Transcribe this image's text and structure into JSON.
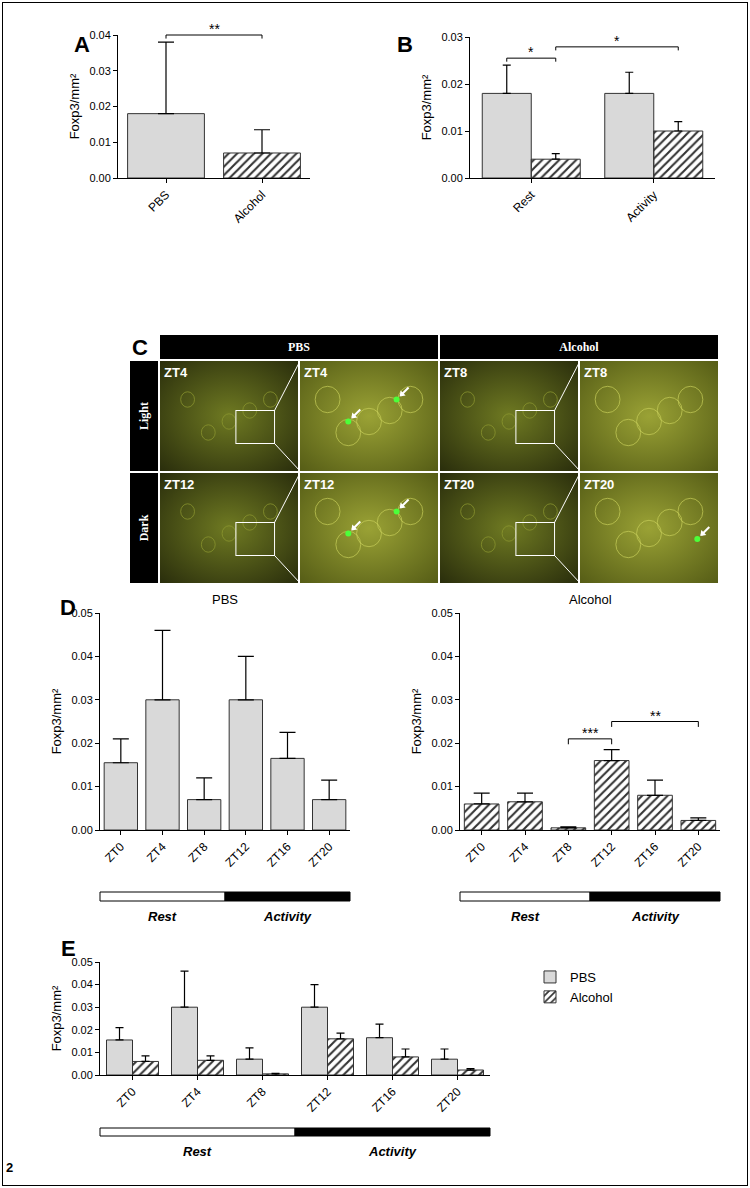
{
  "chart_data": [
    {
      "panel": "A",
      "type": "bar",
      "categories": [
        "PBS",
        "Alcohol"
      ],
      "series": [
        {
          "name": "PBS",
          "color": "#d9d9d9",
          "marker": "solid",
          "values": [
            0.018,
            null
          ],
          "errors": [
            0.02,
            null
          ]
        },
        {
          "name": "Alcohol",
          "color": "#8c8c8c",
          "marker": "hatched",
          "values": [
            null,
            0.007
          ],
          "errors": [
            null,
            0.0065
          ]
        }
      ],
      "y_label": "Foxp3/mm²",
      "ylim": [
        0,
        0.04
      ],
      "yticks": [
        {
          "value": 0,
          "label": "0.00"
        },
        {
          "value": 0.01,
          "label": "0.01"
        },
        {
          "value": 0.02,
          "label": "0.02"
        },
        {
          "value": 0.03,
          "label": "0.03"
        },
        {
          "value": 0.04,
          "label": "0.04"
        }
      ],
      "brackets": [
        {
          "from": "PBS",
          "to": "Alcohol",
          "text": "**"
        }
      ],
      "grid": false
    },
    {
      "panel": "B",
      "type": "bar",
      "categories": [
        "Rest",
        "Activity"
      ],
      "series": [
        {
          "name": "PBS",
          "color": "#d9d9d9",
          "marker": "solid",
          "values": [
            0.018,
            0.018
          ],
          "errors": [
            0.006,
            0.0045
          ]
        },
        {
          "name": "Alcohol",
          "color": "#8c8c8c",
          "marker": "hatched",
          "values": [
            0.004,
            0.01
          ],
          "errors": [
            0.0012,
            0.002
          ]
        }
      ],
      "y_label": "Foxp3/mm²",
      "ylim": [
        0,
        0.03
      ],
      "yticks": [
        {
          "value": 0,
          "label": "0.00"
        },
        {
          "value": 0.01,
          "label": "0.01"
        },
        {
          "value": 0.02,
          "label": "0.02"
        },
        {
          "value": 0.03,
          "label": "0.03"
        }
      ],
      "brackets": [
        {
          "from": [
            "Rest",
            "PBS"
          ],
          "to": [
            "Rest",
            "Alcohol"
          ],
          "text": "*"
        },
        {
          "from": [
            "Rest",
            "Alcohol"
          ],
          "to": [
            "Activity",
            "Alcohol"
          ],
          "text": "*"
        }
      ],
      "grid": false
    },
    {
      "panel": "D",
      "type": "bar",
      "title": "PBS",
      "categories": [
        "ZT0",
        "ZT4",
        "ZT8",
        "ZT12",
        "ZT16",
        "ZT20"
      ],
      "series": [
        {
          "name": "PBS",
          "color": "#d9d9d9",
          "marker": "solid",
          "values": [
            0.0155,
            0.03,
            0.007,
            0.03,
            0.0165,
            0.007
          ],
          "errors": [
            0.0055,
            0.016,
            0.005,
            0.01,
            0.006,
            0.0045
          ]
        }
      ],
      "y_label": "Foxp3/mm²",
      "ylim": [
        0,
        0.05
      ],
      "yticks": [
        {
          "value": 0,
          "label": "0.00"
        },
        {
          "value": 0.01,
          "label": "0.01"
        },
        {
          "value": 0.02,
          "label": "0.02"
        },
        {
          "value": 0.03,
          "label": "0.03"
        },
        {
          "value": 0.04,
          "label": "0.04"
        },
        {
          "value": 0.05,
          "label": "0.05"
        }
      ],
      "phases": [
        {
          "label": "Rest",
          "from": "ZT0",
          "to": "ZT8",
          "color": "#ffffff"
        },
        {
          "label": "Activity",
          "from": "ZT12",
          "to": "ZT20",
          "color": "#000000"
        }
      ],
      "grid": false
    },
    {
      "type": "bar",
      "title": "Alcohol",
      "categories": [
        "ZT0",
        "ZT4",
        "ZT8",
        "ZT12",
        "ZT16",
        "ZT20"
      ],
      "series": [
        {
          "name": "Alcohol",
          "color": "#8c8c8c",
          "marker": "hatched",
          "values": [
            0.006,
            0.0065,
            0.0005,
            0.016,
            0.008,
            0.0022
          ],
          "errors": [
            0.0025,
            0.002,
            0.0002,
            0.0025,
            0.0035,
            0.0006
          ]
        }
      ],
      "y_label": "Foxp3/mm²",
      "ylim": [
        0,
        0.05
      ],
      "yticks": [
        {
          "value": 0,
          "label": "0.00"
        },
        {
          "value": 0.01,
          "label": "0.01"
        },
        {
          "value": 0.02,
          "label": "0.02"
        },
        {
          "value": 0.03,
          "label": "0.03"
        },
        {
          "value": 0.04,
          "label": "0.04"
        },
        {
          "value": 0.05,
          "label": "0.05"
        }
      ],
      "brackets": [
        {
          "from": "ZT8",
          "to": "ZT12",
          "text": "***"
        },
        {
          "from": "ZT12",
          "to": "ZT20",
          "text": "**"
        }
      ],
      "phases": [
        {
          "label": "Rest",
          "from": "ZT0",
          "to": "ZT8",
          "color": "#ffffff"
        },
        {
          "label": "Activity",
          "from": "ZT12",
          "to": "ZT20",
          "color": "#000000"
        }
      ],
      "grid": false
    },
    {
      "panel": "E",
      "type": "bar",
      "categories": [
        "ZT0",
        "ZT4",
        "ZT8",
        "ZT12",
        "ZT16",
        "ZT20"
      ],
      "series": [
        {
          "name": "PBS",
          "color": "#d9d9d9",
          "marker": "solid",
          "values": [
            0.0155,
            0.03,
            0.007,
            0.03,
            0.0165,
            0.007
          ],
          "errors": [
            0.0055,
            0.016,
            0.005,
            0.01,
            0.006,
            0.0045
          ]
        },
        {
          "name": "Alcohol",
          "color": "#8c8c8c",
          "marker": "hatched",
          "values": [
            0.006,
            0.0065,
            0.0005,
            0.016,
            0.008,
            0.0022
          ],
          "errors": [
            0.0025,
            0.002,
            0.0002,
            0.0025,
            0.0035,
            0.0006
          ]
        }
      ],
      "y_label": "Foxp3/mm²",
      "ylim": [
        0,
        0.05
      ],
      "yticks": [
        {
          "value": 0,
          "label": "0.00"
        },
        {
          "value": 0.01,
          "label": "0.01"
        },
        {
          "value": 0.02,
          "label": "0.02"
        },
        {
          "value": 0.03,
          "label": "0.03"
        },
        {
          "value": 0.04,
          "label": "0.04"
        },
        {
          "value": 0.05,
          "label": "0.05"
        }
      ],
      "phases": [
        {
          "label": "Rest",
          "from": "ZT0",
          "to": "ZT8",
          "color": "#ffffff"
        },
        {
          "label": "Activity",
          "from": "ZT12",
          "to": "ZT20",
          "color": "#000000"
        }
      ],
      "legend": "top right",
      "grid": false
    }
  ],
  "panel_c": {
    "panel": "C",
    "columns": [
      "PBS",
      "Alcohol"
    ],
    "rows": [
      "Light",
      "Dark"
    ],
    "images": [
      [
        "ZT4",
        "ZT4",
        "ZT8",
        "ZT8"
      ],
      [
        "ZT12",
        "ZT12",
        "ZT20",
        "ZT20"
      ]
    ]
  },
  "page_number": "2"
}
